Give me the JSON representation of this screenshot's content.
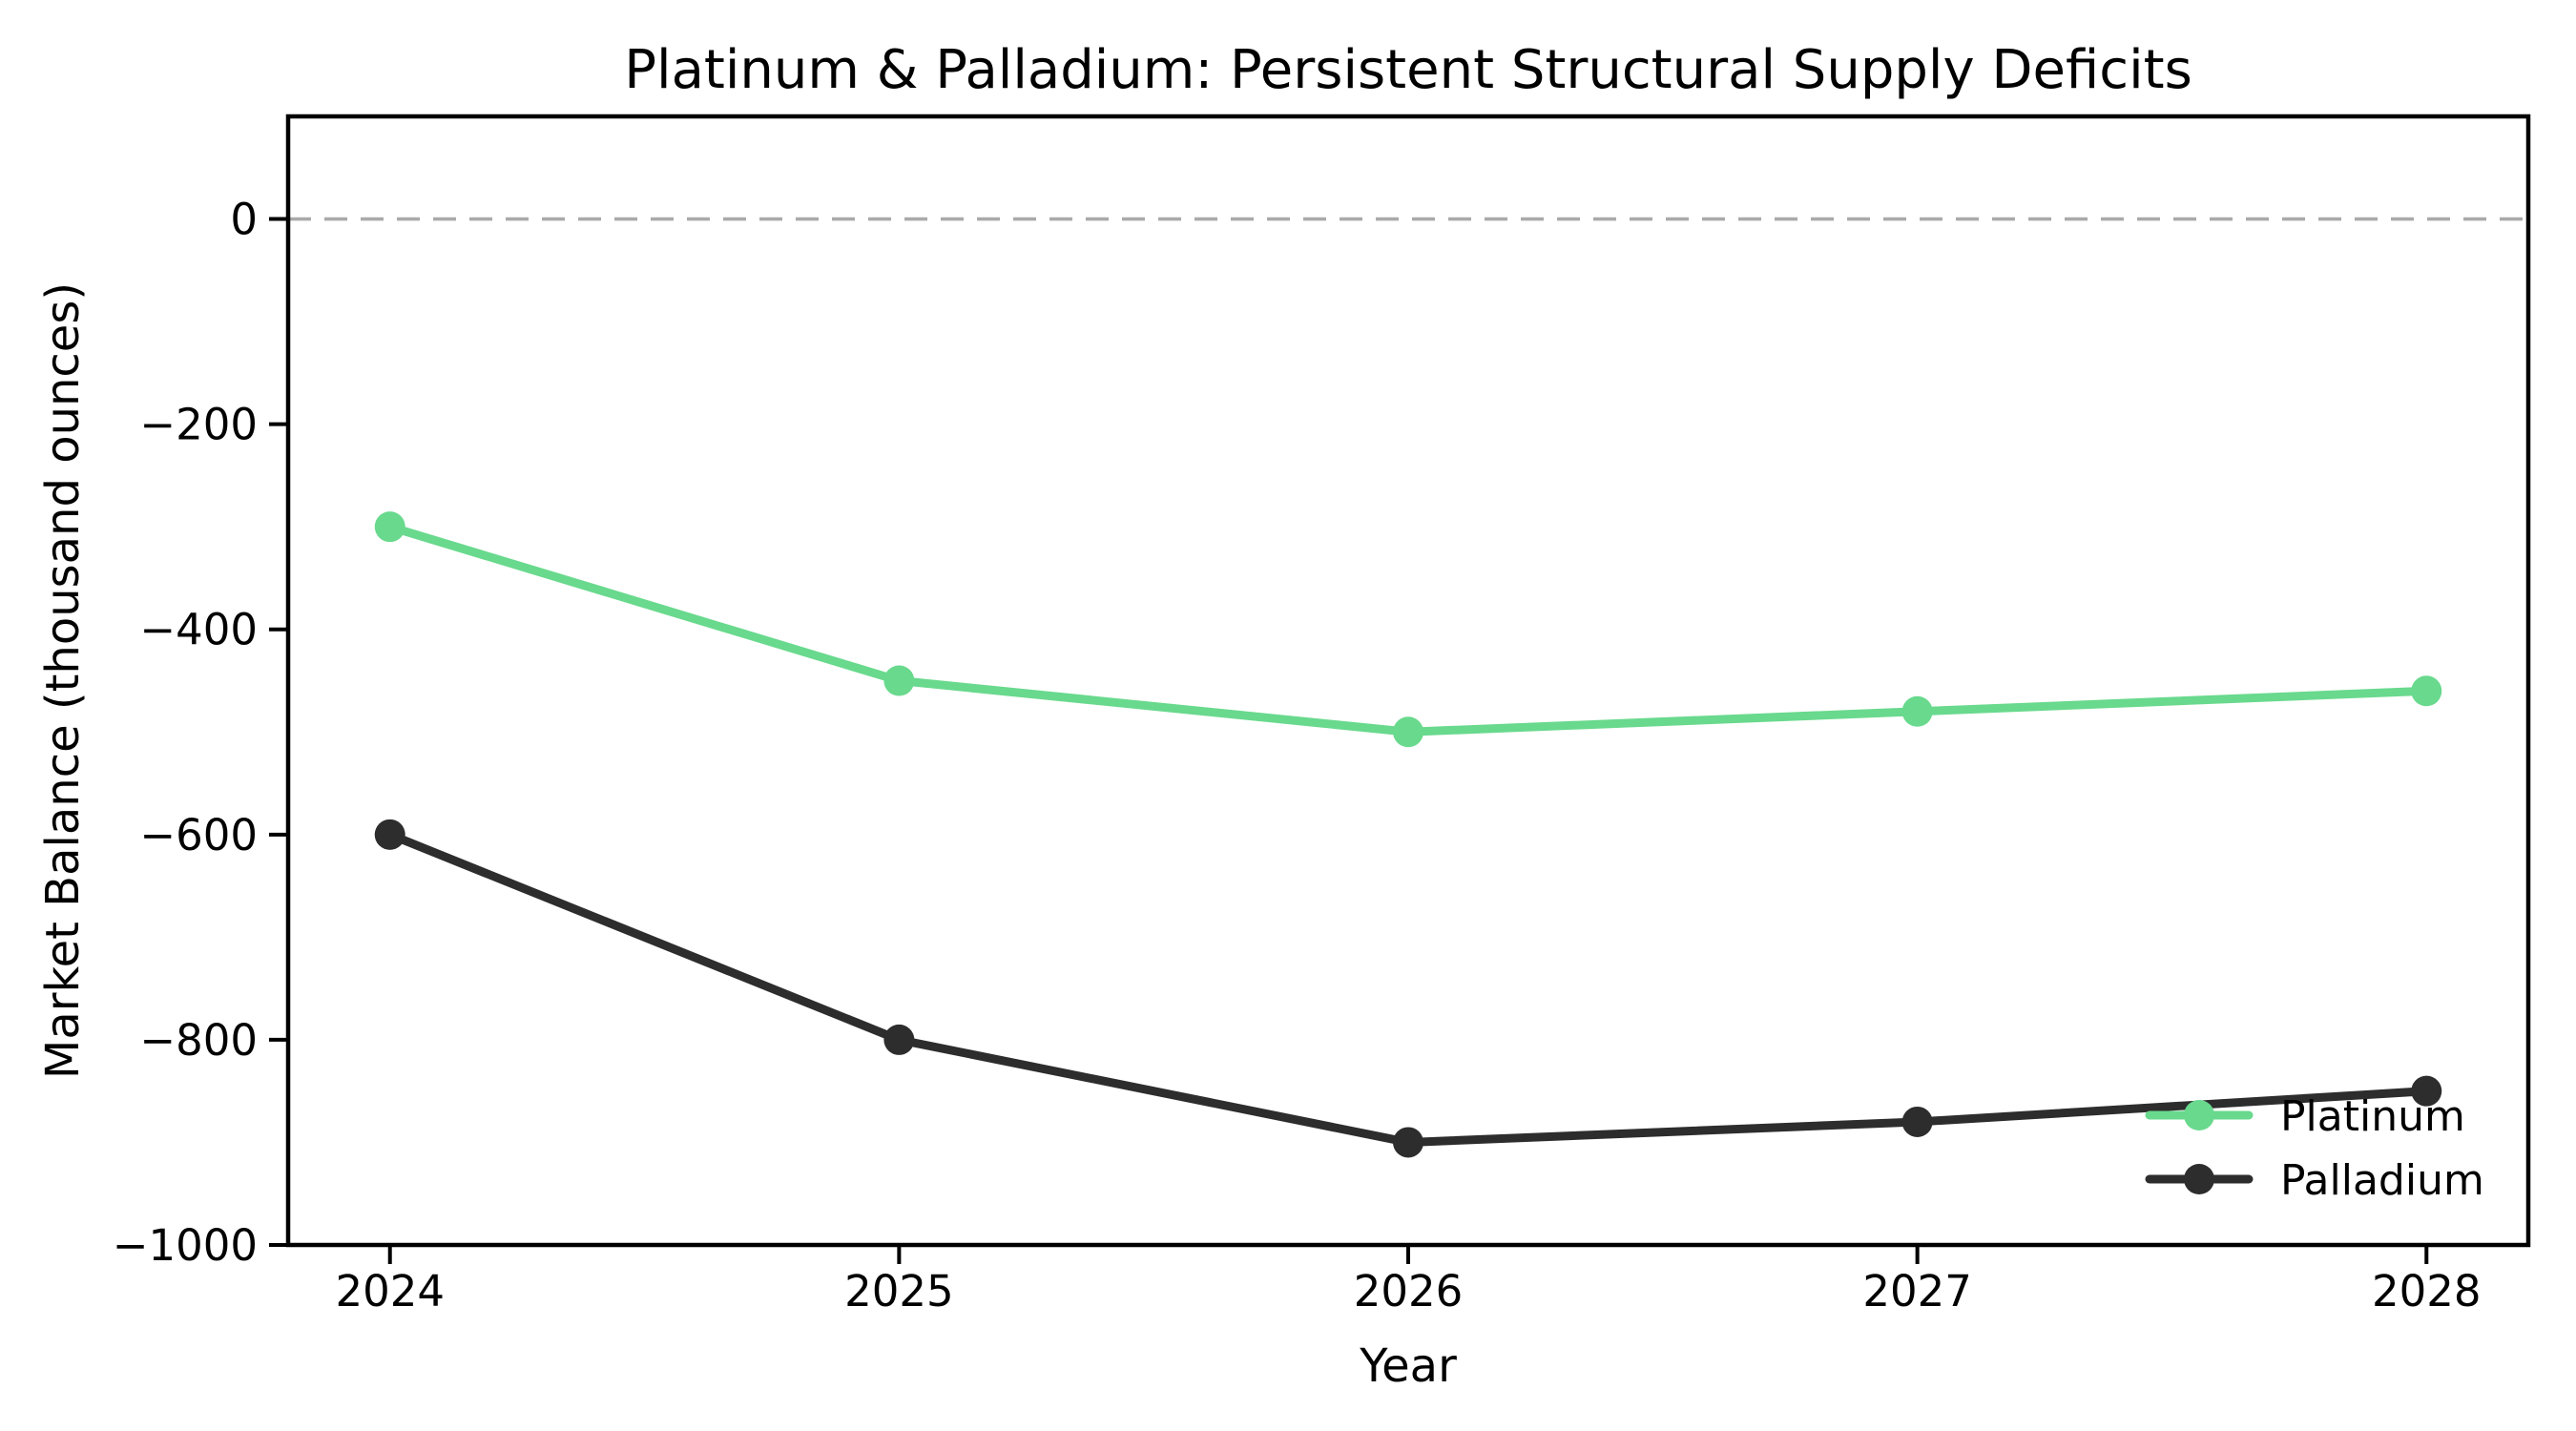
{
  "figure": {
    "background": "#ffffff",
    "text_color": "#000000"
  },
  "chart_data": {
    "type": "line",
    "title": "Platinum & Palladium: Persistent Structural Supply Deficits",
    "xlabel": "Year",
    "ylabel": "Market Balance (thousand ounces)",
    "x": [
      2024,
      2025,
      2026,
      2027,
      2028
    ],
    "series": [
      {
        "name": "Platinum",
        "color": "#69d98d",
        "values": [
          -300,
          -450,
          -500,
          -480,
          -460
        ]
      },
      {
        "name": "Palladium",
        "color": "#2d2d2d",
        "values": [
          -600,
          -800,
          -900,
          -880,
          -850
        ]
      }
    ],
    "xlim": [
      2023.8,
      2028.2
    ],
    "ylim": [
      -1000,
      100
    ],
    "yticks": [
      0,
      -200,
      -400,
      -600,
      -800,
      -1000
    ],
    "xticks": [
      2024,
      2025,
      2026,
      2027,
      2028
    ],
    "zero_line": {
      "y": 0,
      "style": "dashed",
      "color": "#aaaaaa"
    },
    "legend": {
      "position": "lower right",
      "frame": false,
      "labels": [
        "Platinum",
        "Palladium"
      ]
    },
    "grid": false,
    "spine_color": "#000000"
  }
}
